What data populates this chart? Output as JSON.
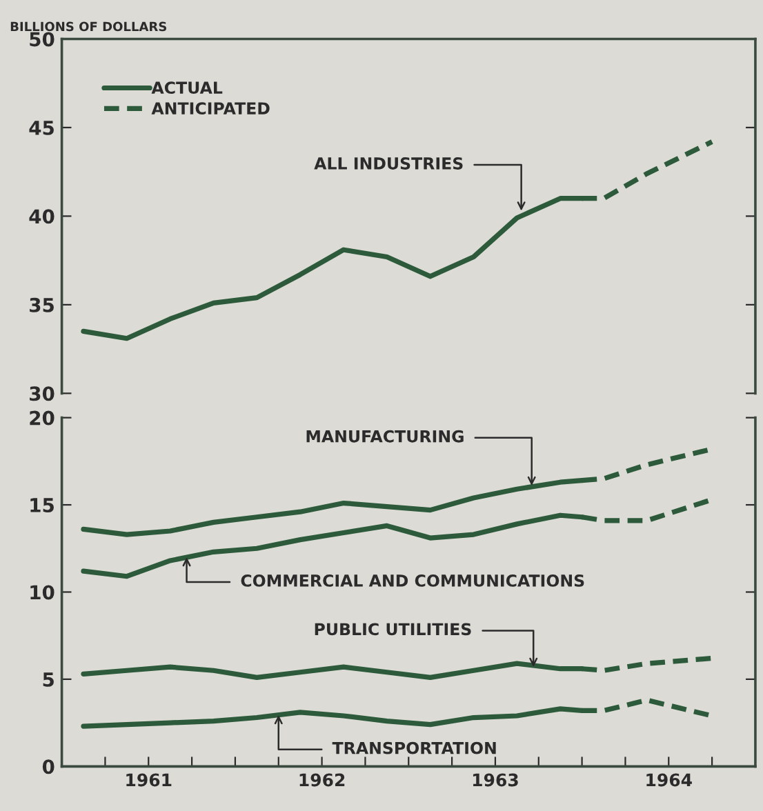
{
  "chart_data": [
    {
      "type": "line",
      "ylabel": "BILLIONS OF DOLLARS",
      "xlim": [
        1961.0,
        1965.0
      ],
      "ylim": [
        30,
        50
      ],
      "yticks": [
        30,
        35,
        40,
        45,
        50
      ],
      "tick_labels": "y",
      "legend": "top left",
      "grid": false,
      "annotations": [
        {
          "text": "ALL INDUSTRIES",
          "x": 1963.65,
          "y": 40.3
        }
      ],
      "series": [
        {
          "name": "ACTUAL",
          "color": "#2c5a3a",
          "line_style": "solid",
          "x": [
            1961.125,
            1961.375,
            1961.625,
            1961.875,
            1962.125,
            1962.375,
            1962.625,
            1962.875,
            1963.125,
            1963.375,
            1963.625,
            1963.875,
            1964.0
          ],
          "values": [
            33.5,
            33.1,
            34.2,
            35.1,
            35.4,
            36.7,
            38.1,
            37.7,
            36.6,
            37.7,
            39.9,
            41.0,
            41.0
          ]
        },
        {
          "name": "ANTICIPATED",
          "color": "#2c5a3a",
          "line_style": "dashed",
          "x": [
            1964.0,
            1964.125,
            1964.375,
            1964.75
          ],
          "values": [
            41.0,
            41.0,
            42.4,
            44.2
          ]
        }
      ]
    },
    {
      "type": "line",
      "xlim": [
        1961.0,
        1965.0
      ],
      "ylim": [
        0,
        20
      ],
      "yticks": [
        0,
        5,
        10,
        15,
        20
      ],
      "grid": false,
      "xticks": [
        {
          "value": 1961.25,
          "label": null
        },
        {
          "value": 1961.5,
          "label": "1961"
        },
        {
          "value": 1961.75,
          "label": null
        },
        {
          "value": 1962.0,
          "label": null
        },
        {
          "value": 1962.25,
          "label": null
        },
        {
          "value": 1962.5,
          "label": "1962"
        },
        {
          "value": 1962.75,
          "label": null
        },
        {
          "value": 1963.0,
          "label": null
        },
        {
          "value": 1963.25,
          "label": null
        },
        {
          "value": 1963.5,
          "label": "1963"
        },
        {
          "value": 1963.75,
          "label": null
        },
        {
          "value": 1964.0,
          "label": null
        },
        {
          "value": 1964.25,
          "label": null
        },
        {
          "value": 1964.5,
          "label": "1964"
        },
        {
          "value": 1964.75,
          "label": null
        }
      ],
      "annotations": [
        {
          "text": "MANUFACTURING",
          "x": 1963.71,
          "y": 16.1
        },
        {
          "text": "COMMERCIAL AND COMMUNICATIONS",
          "x": 1961.72,
          "y": 12.0
        },
        {
          "text": "PUBLIC UTILITIES",
          "x": 1963.72,
          "y": 5.7
        },
        {
          "text": "TRANSPORTATION",
          "x": 1962.25,
          "y": 2.95
        }
      ],
      "series": [
        {
          "color": "#2c5a3a",
          "line_style": "solid",
          "x": [
            1961.125,
            1961.375,
            1961.625,
            1961.875,
            1962.125,
            1962.375,
            1962.625,
            1962.875,
            1963.125,
            1963.375,
            1963.625,
            1963.875,
            1964.0
          ],
          "values": [
            13.6,
            13.3,
            13.5,
            14.0,
            14.3,
            14.6,
            15.1,
            14.9,
            14.7,
            15.4,
            15.9,
            16.3,
            16.4
          ]
        },
        {
          "color": "#2c5a3a",
          "line_style": "dashed",
          "x": [
            1964.0,
            1964.125,
            1964.375,
            1964.75
          ],
          "values": [
            16.4,
            16.5,
            17.3,
            18.2
          ]
        },
        {
          "color": "#2c5a3a",
          "line_style": "solid",
          "x": [
            1961.125,
            1961.375,
            1961.625,
            1961.875,
            1962.125,
            1962.375,
            1962.625,
            1962.875,
            1963.125,
            1963.375,
            1963.625,
            1963.875,
            1964.0
          ],
          "values": [
            11.2,
            10.9,
            11.8,
            12.3,
            12.5,
            13.0,
            13.4,
            13.8,
            13.1,
            13.3,
            13.9,
            14.4,
            14.3
          ]
        },
        {
          "color": "#2c5a3a",
          "line_style": "dashed",
          "x": [
            1964.0,
            1964.125,
            1964.375,
            1964.75
          ],
          "values": [
            14.3,
            14.1,
            14.1,
            15.3
          ]
        },
        {
          "color": "#2c5a3a",
          "line_style": "solid",
          "x": [
            1961.125,
            1961.375,
            1961.625,
            1961.875,
            1962.125,
            1962.375,
            1962.625,
            1962.875,
            1963.125,
            1963.375,
            1963.625,
            1963.875,
            1964.0
          ],
          "values": [
            5.3,
            5.5,
            5.7,
            5.5,
            5.1,
            5.4,
            5.7,
            5.4,
            5.1,
            5.5,
            5.9,
            5.6,
            5.6
          ]
        },
        {
          "color": "#2c5a3a",
          "line_style": "dashed",
          "x": [
            1964.0,
            1964.125,
            1964.375,
            1964.75
          ],
          "values": [
            5.6,
            5.5,
            5.9,
            6.2
          ]
        },
        {
          "color": "#2c5a3a",
          "line_style": "solid",
          "x": [
            1961.125,
            1961.375,
            1961.625,
            1961.875,
            1962.125,
            1962.375,
            1962.625,
            1962.875,
            1963.125,
            1963.375,
            1963.625,
            1963.875,
            1964.0
          ],
          "values": [
            2.3,
            2.4,
            2.5,
            2.6,
            2.8,
            3.1,
            2.9,
            2.6,
            2.4,
            2.8,
            2.9,
            3.3,
            3.2
          ]
        },
        {
          "color": "#2c5a3a",
          "line_style": "dashed",
          "x": [
            1964.0,
            1964.125,
            1964.375,
            1964.75
          ],
          "values": [
            3.2,
            3.2,
            3.8,
            2.9
          ]
        }
      ]
    }
  ]
}
